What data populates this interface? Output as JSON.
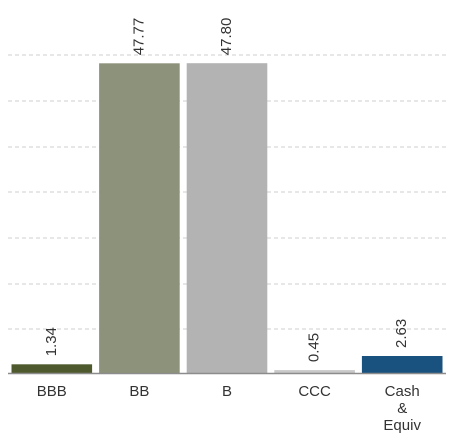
{
  "chart_data": {
    "type": "bar",
    "categories": [
      [
        "BBB"
      ],
      [
        "BB"
      ],
      [
        "B"
      ],
      [
        "CCC"
      ],
      [
        "Cash",
        "&",
        "Equiv"
      ]
    ],
    "values": [
      1.34,
      47.77,
      47.8,
      0.45,
      2.63
    ],
    "value_labels": [
      "1.34",
      "47.77",
      "47.80",
      "0.45",
      "2.63"
    ],
    "bar_colors": [
      "#4e5a2e",
      "#8d937a",
      "#b3b3b3",
      "#c9c9c9",
      "#1a527f"
    ],
    "title": "",
    "xlabel": "",
    "ylabel": "",
    "ylim": [
      0,
      56
    ],
    "grid": true
  }
}
